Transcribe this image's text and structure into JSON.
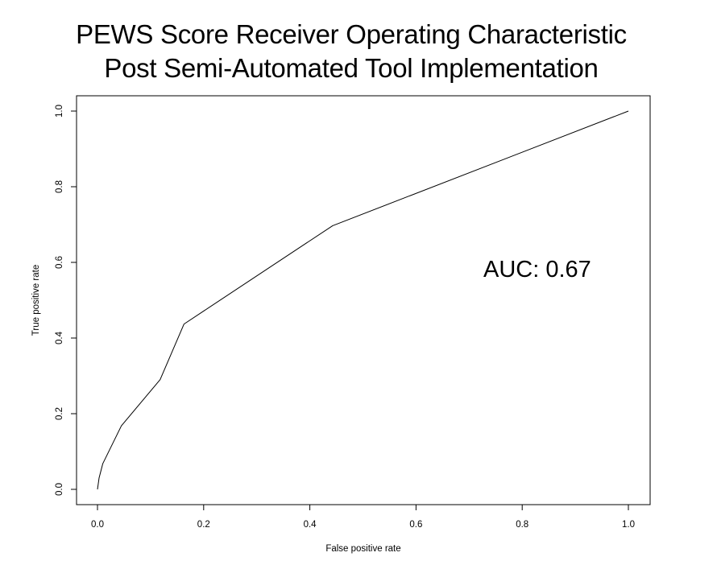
{
  "chart_data": {
    "type": "line",
    "title_lines": [
      "PEWS Score Receiver Operating Characteristic",
      "Post Semi-Automated Tool Implementation"
    ],
    "xlabel": "False positive rate",
    "ylabel": "True positive rate",
    "xlim": [
      0,
      1
    ],
    "ylim": [
      0,
      1
    ],
    "x_ticks": [
      "0.0",
      "0.2",
      "0.4",
      "0.6",
      "0.8",
      "1.0"
    ],
    "y_ticks": [
      "0.0",
      "0.2",
      "0.4",
      "0.6",
      "0.8",
      "1.0"
    ],
    "grid": false,
    "legend": "none",
    "annotation": "AUC: 0.67",
    "series": [
      {
        "x": [
          0.0,
          0.003,
          0.01,
          0.045,
          0.118,
          0.163,
          0.443,
          1.0
        ],
        "y": [
          0.0,
          0.03,
          0.068,
          0.168,
          0.29,
          0.437,
          0.697,
          1.0
        ]
      }
    ],
    "line_color": "#000000"
  }
}
